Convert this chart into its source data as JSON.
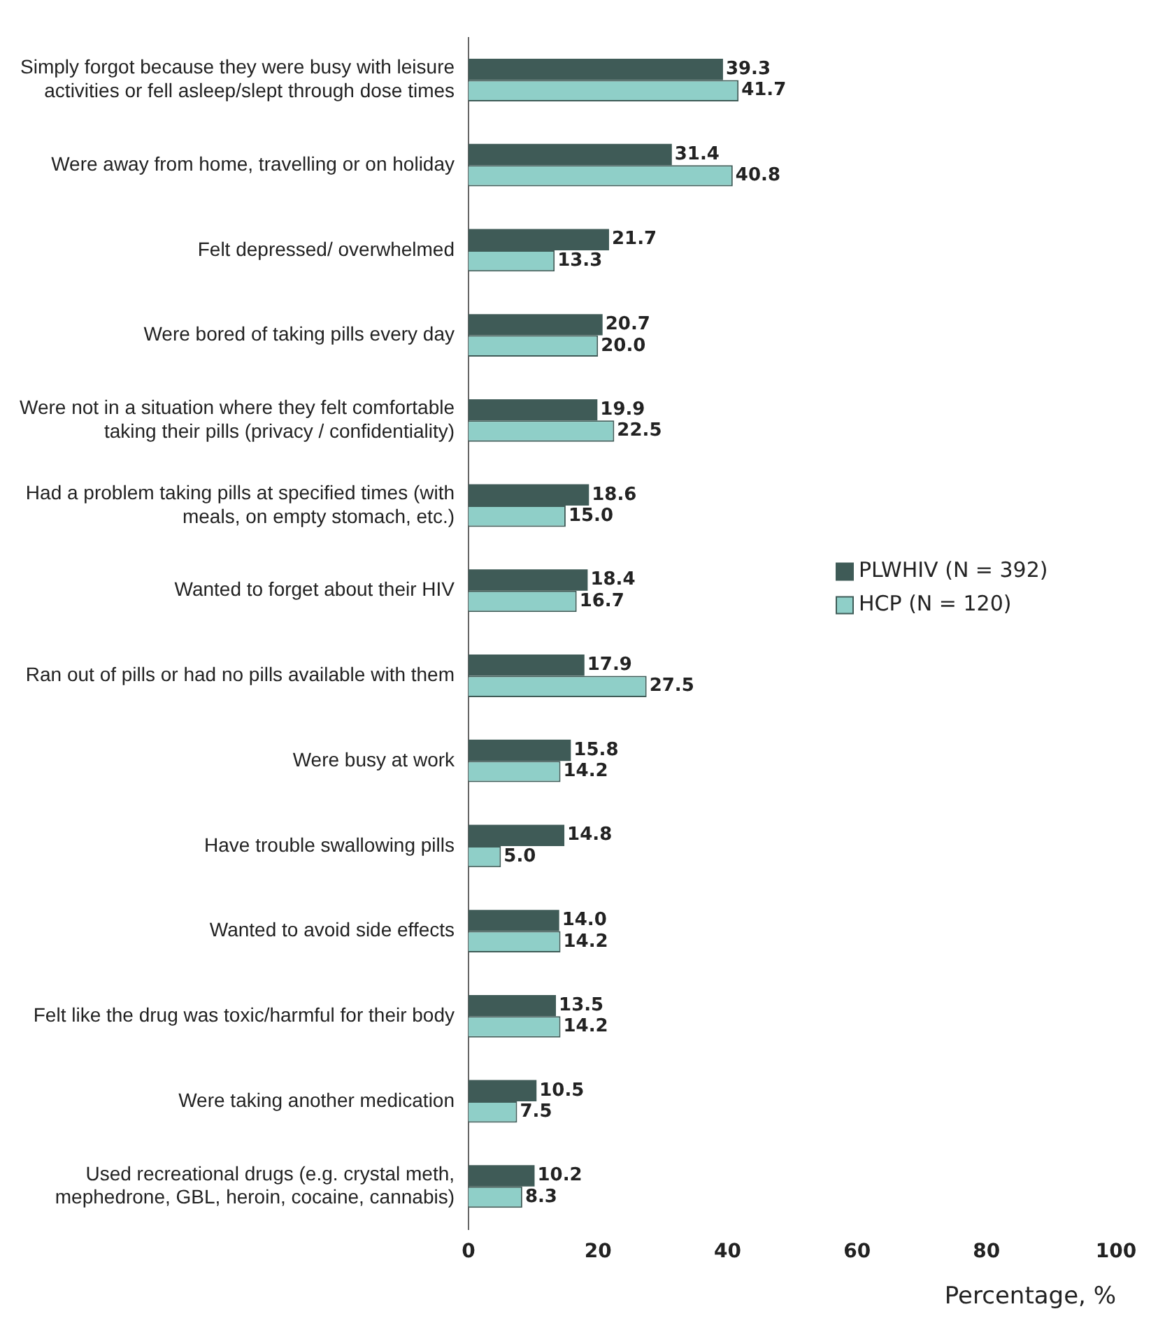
{
  "chart_data": {
    "type": "bar",
    "orientation": "horizontal",
    "xlabel": "Percentage, %",
    "categories": [
      "Simply forgot because they were busy with leisure activities or fell asleep/slept through dose times",
      "Were away from home, travelling or on holiday",
      "Felt depressed/ overwhelmed",
      "Were bored of taking pills every day",
      "Were not in a situation where they felt comfortable taking their pills (privacy / confidentiality)",
      "Had a problem taking pills at specified times (with meals, on empty stomach, etc.)",
      "Wanted to forget about their HIV",
      "Ran out of pills or had no pills available with them",
      "Were busy at work",
      "Have trouble swallowing pills",
      "Wanted to avoid side effects",
      "Felt like the drug was toxic/harmful for their body",
      "Were taking another medication",
      "Used recreational drugs (e.g. crystal meth, mephedrone, GBL, heroin, cocaine, cannabis)"
    ],
    "series": [
      {
        "name": "PLWHIV (N = 392)",
        "color": "#3f5b57",
        "values": [
          39.3,
          31.4,
          21.7,
          20.7,
          19.9,
          18.6,
          18.4,
          17.9,
          15.8,
          14.8,
          14.0,
          13.5,
          10.5,
          10.2
        ],
        "value_labels": [
          "39.3",
          "31.4",
          "21.7",
          "20.7",
          "19.9",
          "18.6",
          "18.4",
          "17.9",
          "15.8",
          "14.8",
          "14.0",
          "13.5",
          "10.5",
          "10.2"
        ]
      },
      {
        "name": "HCP (N = 120)",
        "color": "#8fcfc8",
        "values": [
          41.7,
          40.8,
          13.3,
          20.0,
          22.5,
          15.0,
          16.7,
          27.5,
          14.2,
          5.0,
          14.2,
          14.2,
          7.5,
          8.3
        ],
        "value_labels": [
          "41.7",
          "40.8",
          "13.3",
          "20.0",
          "22.5",
          "15.0",
          "16.7",
          "27.5",
          "14.2",
          "5.0",
          "14.2",
          "14.2",
          "7.5",
          "8.3"
        ]
      }
    ],
    "xlim": [
      0,
      100
    ],
    "xticks": [
      0,
      20,
      40,
      60,
      80,
      100
    ],
    "legend": "right"
  }
}
